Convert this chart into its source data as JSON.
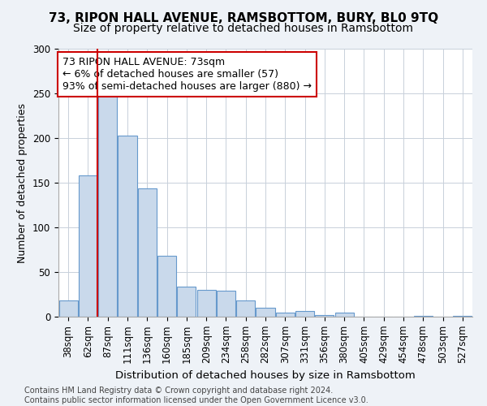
{
  "title": "73, RIPON HALL AVENUE, RAMSBOTTOM, BURY, BL0 9TQ",
  "subtitle": "Size of property relative to detached houses in Ramsbottom",
  "xlabel": "Distribution of detached houses by size in Ramsbottom",
  "ylabel": "Number of detached properties",
  "categories": [
    "38sqm",
    "62sqm",
    "87sqm",
    "111sqm",
    "136sqm",
    "160sqm",
    "185sqm",
    "209sqm",
    "234sqm",
    "258sqm",
    "282sqm",
    "307sqm",
    "331sqm",
    "356sqm",
    "380sqm",
    "405sqm",
    "429sqm",
    "454sqm",
    "478sqm",
    "503sqm",
    "527sqm"
  ],
  "values": [
    18,
    158,
    250,
    203,
    144,
    68,
    34,
    30,
    29,
    18,
    10,
    5,
    6,
    2,
    5,
    0,
    0,
    0,
    1,
    0,
    1
  ],
  "bar_color": "#c9d9eb",
  "bar_edge_color": "#6699cc",
  "vline_x_index": 1,
  "vline_color": "#cc0000",
  "annotation_line1": "73 RIPON HALL AVENUE: 73sqm",
  "annotation_line2": "← 6% of detached houses are smaller (57)",
  "annotation_line3": "93% of semi-detached houses are larger (880) →",
  "annotation_box_facecolor": "#ffffff",
  "annotation_box_edgecolor": "#cc0000",
  "ylim": [
    0,
    300
  ],
  "yticks": [
    0,
    50,
    100,
    150,
    200,
    250,
    300
  ],
  "title_fontsize": 11,
  "subtitle_fontsize": 10,
  "xlabel_fontsize": 9.5,
  "ylabel_fontsize": 9,
  "tick_fontsize": 8.5,
  "annotation_fontsize": 9,
  "footer_text": "Contains HM Land Registry data © Crown copyright and database right 2024.\nContains public sector information licensed under the Open Government Licence v3.0.",
  "footer_fontsize": 7,
  "background_color": "#eef2f7",
  "plot_background_color": "#ffffff",
  "grid_color": "#c8d0da"
}
